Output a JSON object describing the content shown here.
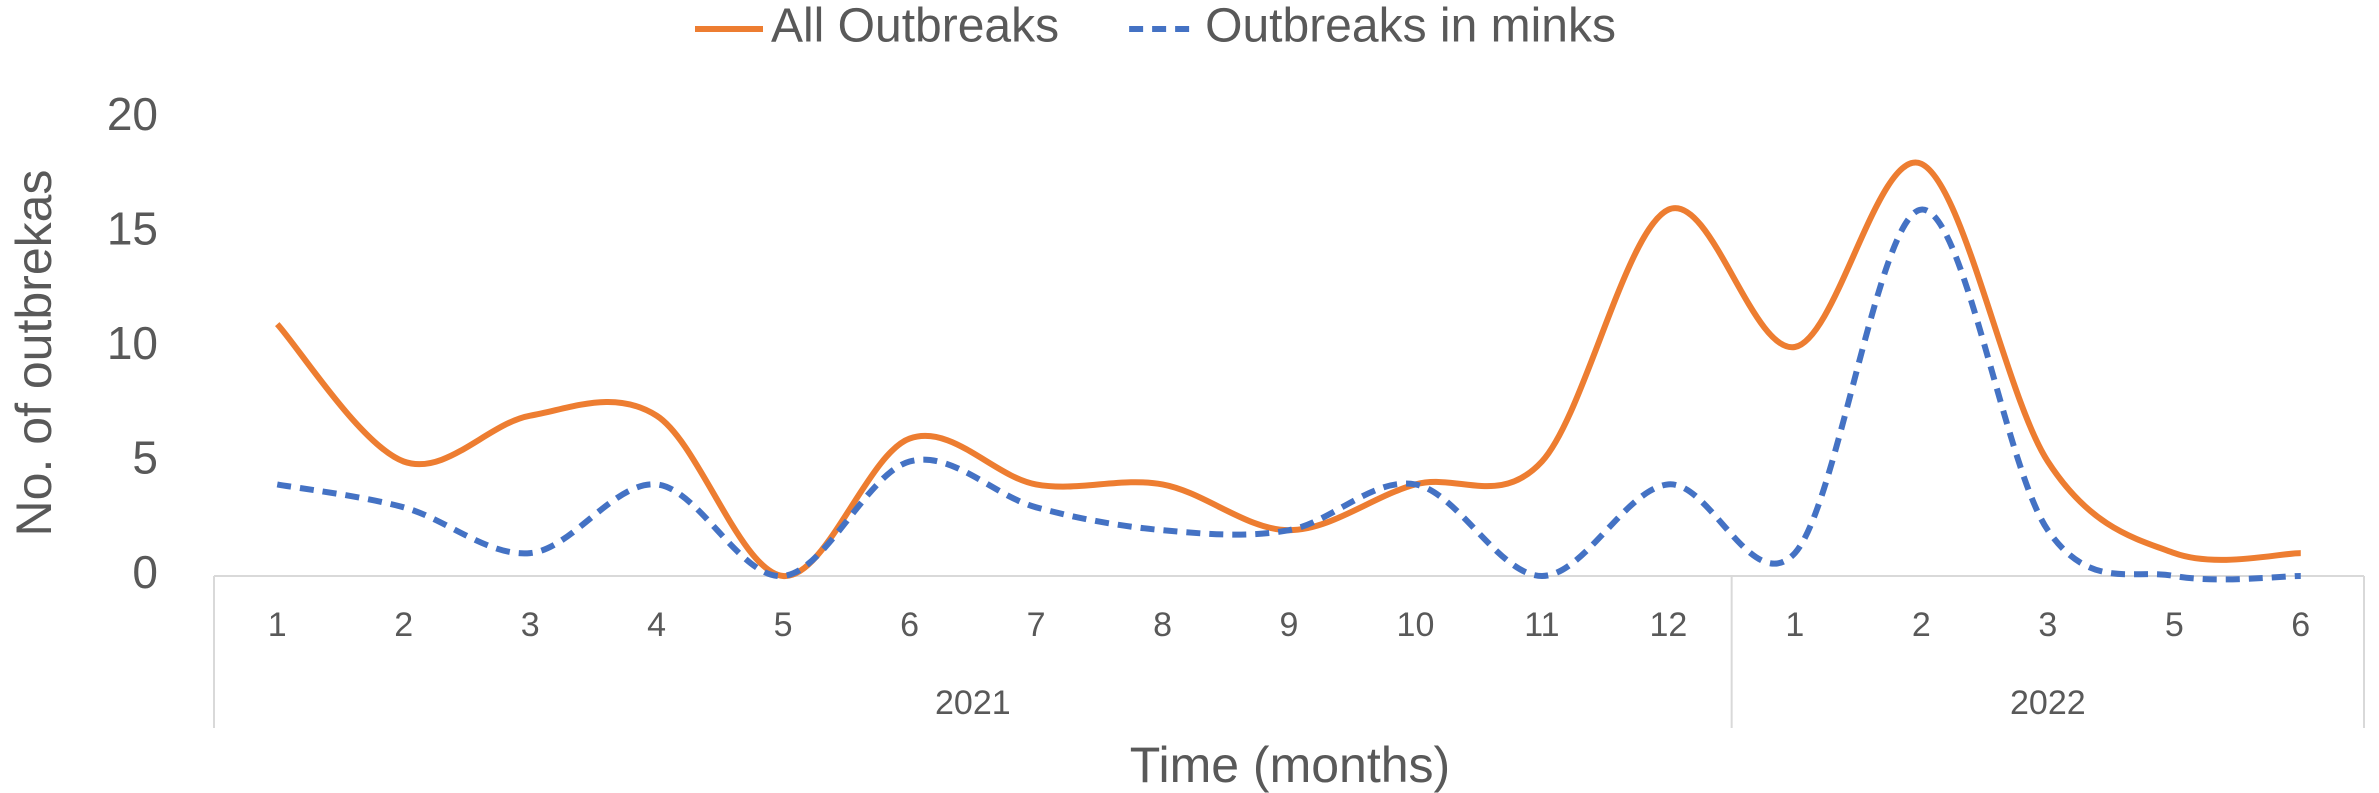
{
  "chart_data": {
    "type": "line",
    "categories": [
      "1",
      "2",
      "3",
      "4",
      "5",
      "6",
      "7",
      "8",
      "9",
      "10",
      "11",
      "12",
      "1",
      "2",
      "3",
      "5",
      "6"
    ],
    "groups": [
      {
        "label": "2021",
        "span": 12
      },
      {
        "label": "2022",
        "span": 5
      }
    ],
    "series": [
      {
        "name": "All Outbreaks",
        "color": "#ed7d31",
        "dash": false,
        "values": [
          11,
          5,
          7,
          7,
          0,
          6,
          4,
          4,
          2,
          4,
          5,
          16,
          10,
          18,
          5,
          1,
          1
        ]
      },
      {
        "name": "Outbreaks in minks",
        "color": "#4472c4",
        "dash": true,
        "values": [
          4,
          3,
          1,
          4,
          0,
          5,
          3,
          2,
          2,
          4,
          0,
          4,
          1,
          16,
          2,
          0,
          0
        ]
      }
    ],
    "ylim": [
      0,
      20
    ],
    "yticks": [
      0,
      5,
      10,
      15,
      20
    ],
    "ylabel": "No. of outbrekas",
    "xlabel": "Time (months)",
    "smooth": true,
    "legend": "top"
  }
}
